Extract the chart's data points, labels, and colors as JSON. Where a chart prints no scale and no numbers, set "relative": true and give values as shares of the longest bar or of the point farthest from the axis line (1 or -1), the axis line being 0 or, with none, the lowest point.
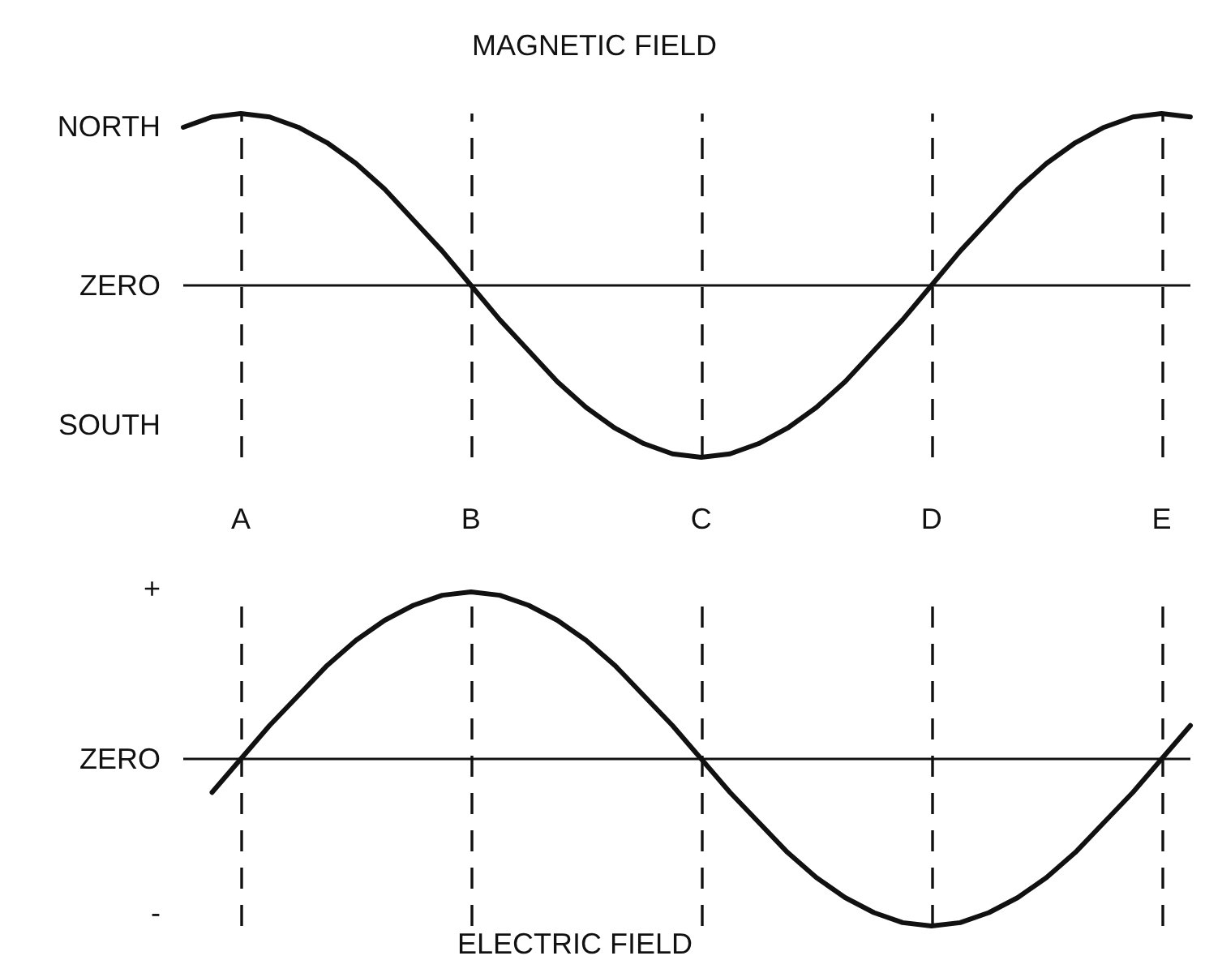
{
  "chart_data": [
    {
      "type": "line",
      "title": "MAGNETIC FIELD",
      "relative": true,
      "categories": [
        null,
        null,
        "A",
        null,
        null,
        null,
        null,
        null,
        null,
        null,
        "B",
        null,
        null,
        null,
        null,
        null,
        null,
        null,
        "C",
        null,
        null,
        null,
        null,
        null,
        null,
        null,
        "D",
        null,
        null,
        null,
        null,
        null,
        null,
        null,
        "E",
        null
      ],
      "series": [
        {
          "color": "#111111",
          "values": [
            0.92,
            0.98,
            1,
            0.98,
            0.92,
            0.83,
            0.71,
            0.56,
            0.38,
            0.2,
            0,
            -0.2,
            -0.38,
            -0.56,
            -0.71,
            -0.83,
            -0.92,
            -0.98,
            -1,
            -0.98,
            -0.92,
            -0.83,
            -0.71,
            -0.56,
            -0.38,
            -0.2,
            0,
            0.2,
            0.38,
            0.56,
            0.71,
            0.83,
            0.92,
            0.98,
            1,
            0.98
          ]
        }
      ],
      "ref_lines": [
        {
          "axis": "y",
          "value": 0,
          "label": "ZERO"
        },
        {
          "axis": "x",
          "value": "A",
          "line_style": "dashed"
        },
        {
          "axis": "x",
          "value": "B",
          "line_style": "dashed"
        },
        {
          "axis": "x",
          "value": "C",
          "line_style": "dashed"
        },
        {
          "axis": "x",
          "value": "D",
          "line_style": "dashed"
        },
        {
          "axis": "x",
          "value": "E",
          "line_style": "dashed"
        }
      ],
      "annotations": [
        "NORTH",
        "SOUTH"
      ],
      "marker": "none",
      "line_style": "solid"
    },
    {
      "type": "line",
      "title": "ELECTRIC FIELD",
      "relative": true,
      "categories": [
        null,
        null,
        "A",
        null,
        null,
        null,
        null,
        null,
        null,
        null,
        "B",
        null,
        null,
        null,
        null,
        null,
        null,
        null,
        "C",
        null,
        null,
        null,
        null,
        null,
        null,
        null,
        "D",
        null,
        null,
        null,
        null,
        null,
        null,
        null,
        "E",
        null
      ],
      "series": [
        {
          "color": "#111111",
          "values": [
            null,
            -0.2,
            0,
            0.2,
            0.38,
            0.56,
            0.71,
            0.83,
            0.92,
            0.98,
            1,
            0.98,
            0.92,
            0.83,
            0.71,
            0.56,
            0.38,
            0.2,
            0,
            -0.2,
            -0.38,
            -0.56,
            -0.71,
            -0.83,
            -0.92,
            -0.98,
            -1,
            -0.98,
            -0.92,
            -0.83,
            -0.71,
            -0.56,
            -0.38,
            -0.2,
            0,
            0.2
          ]
        }
      ],
      "ref_lines": [
        {
          "axis": "y",
          "value": 0,
          "label": "ZERO"
        },
        {
          "axis": "x",
          "value": "A",
          "line_style": "dashed"
        },
        {
          "axis": "x",
          "value": "B",
          "line_style": "dashed"
        },
        {
          "axis": "x",
          "value": "C",
          "line_style": "dashed"
        },
        {
          "axis": "x",
          "value": "D",
          "line_style": "dashed"
        },
        {
          "axis": "x",
          "value": "E",
          "line_style": "dashed"
        }
      ],
      "annotations": [
        "+",
        "-"
      ],
      "tick_labels": false,
      "marker": "none",
      "line_style": "solid"
    }
  ]
}
